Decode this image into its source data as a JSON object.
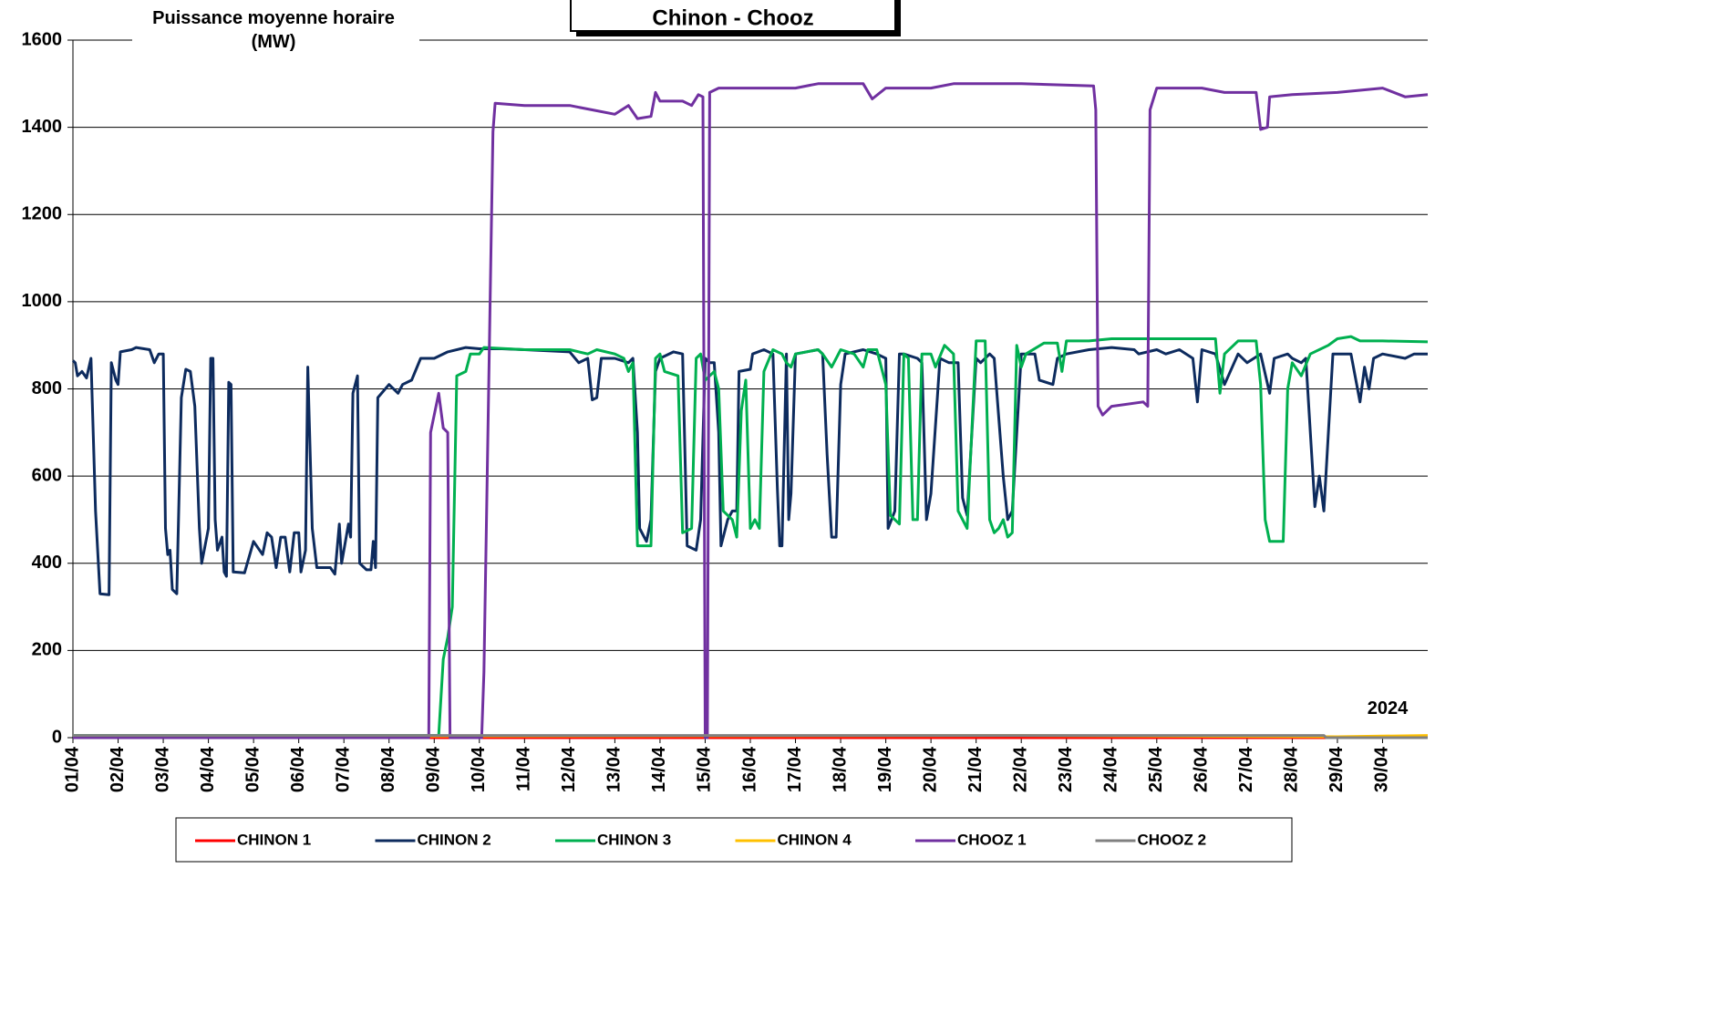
{
  "chart_data": {
    "type": "line",
    "title": "Chinon - Chooz",
    "y_label_lines": [
      "Puissance moyenne horaire",
      "(MW)"
    ],
    "annotation": "2024",
    "xlim": [
      1,
      31
    ],
    "ylim": [
      0,
      1600
    ],
    "yticks": [
      0,
      200,
      400,
      600,
      800,
      1000,
      1200,
      1400,
      1600
    ],
    "xticks": [
      {
        "value": 1,
        "label": "01/04"
      },
      {
        "value": 2,
        "label": "02/04"
      },
      {
        "value": 3,
        "label": "03/04"
      },
      {
        "value": 4,
        "label": "04/04"
      },
      {
        "value": 5,
        "label": "05/04"
      },
      {
        "value": 6,
        "label": "06/04"
      },
      {
        "value": 7,
        "label": "07/04"
      },
      {
        "value": 8,
        "label": "08/04"
      },
      {
        "value": 9,
        "label": "09/04"
      },
      {
        "value": 10,
        "label": "10/04"
      },
      {
        "value": 11,
        "label": "11/04"
      },
      {
        "value": 12,
        "label": "12/04"
      },
      {
        "value": 13,
        "label": "13/04"
      },
      {
        "value": 14,
        "label": "14/04"
      },
      {
        "value": 15,
        "label": "15/04"
      },
      {
        "value": 16,
        "label": "16/04"
      },
      {
        "value": 17,
        "label": "17/04"
      },
      {
        "value": 18,
        "label": "18/04"
      },
      {
        "value": 19,
        "label": "19/04"
      },
      {
        "value": 20,
        "label": "20/04"
      },
      {
        "value": 21,
        "label": "21/04"
      },
      {
        "value": 22,
        "label": "22/04"
      },
      {
        "value": 23,
        "label": "23/04"
      },
      {
        "value": 24,
        "label": "24/04"
      },
      {
        "value": 25,
        "label": "25/04"
      },
      {
        "value": 26,
        "label": "26/04"
      },
      {
        "value": 27,
        "label": "27/04"
      },
      {
        "value": 28,
        "label": "28/04"
      },
      {
        "value": 29,
        "label": "29/04"
      },
      {
        "value": 30,
        "label": "30/04"
      }
    ],
    "grid": true,
    "legend": "bottom",
    "series": [
      {
        "name": "CHINON 1",
        "color": "#ff0000",
        "x": [
          1,
          31
        ],
        "values": [
          0,
          0
        ]
      },
      {
        "name": "CHINON 2",
        "color": "#0d2b5e",
        "x": [
          1.0,
          1.05,
          1.1,
          1.2,
          1.3,
          1.4,
          1.5,
          1.6,
          1.8,
          1.85,
          1.95,
          2.0,
          2.05,
          2.3,
          2.4,
          2.7,
          2.8,
          2.9,
          3.0,
          3.05,
          3.1,
          3.15,
          3.2,
          3.3,
          3.4,
          3.5,
          3.6,
          3.7,
          3.8,
          3.85,
          4.0,
          4.05,
          4.1,
          4.15,
          4.2,
          4.3,
          4.35,
          4.4,
          4.45,
          4.5,
          4.55,
          4.8,
          5.0,
          5.2,
          5.3,
          5.4,
          5.5,
          5.6,
          5.7,
          5.8,
          5.9,
          6.0,
          6.05,
          6.15,
          6.2,
          6.3,
          6.4,
          6.7,
          6.8,
          6.9,
          6.95,
          7.1,
          7.15,
          7.2,
          7.3,
          7.35,
          7.5,
          7.6,
          7.65,
          7.7,
          7.75,
          8.0,
          8.2,
          8.3,
          8.5,
          8.7,
          9.0,
          9.3,
          9.7,
          10.0,
          10.5,
          11.0,
          12.0,
          12.2,
          12.4,
          12.5,
          12.6,
          12.7,
          13.0,
          13.3,
          13.4,
          13.5,
          13.55,
          13.7,
          13.8,
          13.9,
          14.0,
          14.3,
          14.5,
          14.6,
          14.8,
          14.9,
          15.0,
          15.1,
          15.2,
          15.3,
          15.35,
          15.5,
          15.6,
          15.7,
          15.75,
          16.0,
          16.05,
          16.3,
          16.5,
          16.6,
          16.65,
          16.7,
          16.8,
          16.85,
          16.9,
          17.0,
          17.5,
          17.6,
          17.7,
          17.8,
          17.9,
          18.0,
          18.1,
          18.5,
          18.8,
          19.0,
          19.05,
          19.2,
          19.3,
          19.4,
          19.7,
          19.8,
          19.9,
          20.0,
          20.2,
          20.4,
          20.6,
          20.7,
          20.8,
          21.0,
          21.1,
          21.3,
          21.4,
          21.6,
          21.7,
          21.8,
          22.0,
          22.3,
          22.4,
          22.7,
          22.8,
          23.0,
          23.5,
          24.0,
          24.5,
          24.6,
          25.0,
          25.2,
          25.5,
          25.8,
          25.9,
          26.0,
          26.3,
          26.5,
          26.8,
          27.0,
          27.3,
          27.5,
          27.6,
          27.9,
          28.0,
          28.2,
          28.3,
          28.5,
          28.6,
          28.7,
          28.9,
          29.3,
          29.5,
          29.6,
          29.7,
          29.8,
          30.0,
          30.5,
          30.7,
          31.0
        ],
        "values": [
          865,
          860,
          830,
          840,
          825,
          870,
          520,
          330,
          328,
          860,
          820,
          810,
          885,
          890,
          895,
          890,
          860,
          880,
          880,
          480,
          420,
          430,
          340,
          330,
          780,
          845,
          840,
          760,
          480,
          400,
          480,
          870,
          870,
          500,
          430,
          460,
          380,
          370,
          815,
          810,
          380,
          378,
          450,
          420,
          470,
          460,
          390,
          460,
          460,
          380,
          470,
          470,
          380,
          430,
          850,
          480,
          390,
          390,
          375,
          490,
          400,
          490,
          460,
          790,
          830,
          400,
          385,
          385,
          450,
          390,
          780,
          810,
          790,
          810,
          820,
          870,
          870,
          885,
          895,
          892,
          892,
          890,
          885,
          860,
          870,
          775,
          780,
          870,
          870,
          860,
          870,
          700,
          480,
          450,
          500,
          840,
          870,
          885,
          880,
          440,
          430,
          500,
          870,
          860,
          860,
          700,
          440,
          500,
          520,
          520,
          840,
          845,
          880,
          890,
          880,
          570,
          440,
          440,
          880,
          500,
          560,
          880,
          890,
          880,
          650,
          460,
          460,
          810,
          880,
          890,
          880,
          870,
          480,
          520,
          880,
          880,
          870,
          860,
          500,
          560,
          870,
          860,
          860,
          550,
          510,
          870,
          860,
          880,
          870,
          600,
          500,
          520,
          880,
          880,
          820,
          810,
          870,
          880,
          890,
          895,
          890,
          880,
          890,
          880,
          890,
          870,
          770,
          890,
          880,
          810,
          880,
          860,
          880,
          790,
          870,
          880,
          870,
          860,
          870,
          530,
          600,
          520,
          880,
          880,
          770,
          850,
          800,
          870,
          880,
          870,
          880,
          880
        ]
      },
      {
        "name": "CHINON 3",
        "color": "#00b050",
        "x": [
          1.0,
          9.1,
          9.2,
          9.3,
          9.4,
          9.5,
          9.7,
          9.8,
          10.0,
          10.1,
          11.0,
          12.0,
          12.4,
          12.6,
          13.0,
          13.2,
          13.3,
          13.4,
          13.5,
          13.8,
          13.9,
          14.0,
          14.1,
          14.4,
          14.5,
          14.7,
          14.8,
          14.9,
          15.0,
          15.2,
          15.3,
          15.4,
          15.6,
          15.7,
          15.8,
          15.9,
          16.0,
          16.1,
          16.2,
          16.3,
          16.5,
          16.7,
          16.8,
          16.9,
          17.0,
          17.5,
          17.6,
          17.8,
          18.0,
          18.3,
          18.5,
          18.6,
          18.8,
          19.0,
          19.1,
          19.3,
          19.4,
          19.5,
          19.6,
          19.7,
          19.8,
          20.0,
          20.1,
          20.3,
          20.5,
          20.6,
          20.8,
          21.0,
          21.2,
          21.3,
          21.4,
          21.5,
          21.6,
          21.7,
          21.8,
          21.9,
          22.0,
          22.1,
          22.5,
          22.8,
          22.9,
          23.0,
          23.5,
          24.0,
          25.0,
          26.0,
          26.3,
          26.4,
          26.5,
          26.8,
          27.2,
          27.3,
          27.4,
          27.5,
          27.8,
          27.9,
          28.0,
          28.2,
          28.4,
          28.8,
          29.0,
          29.3,
          29.5,
          30.0,
          31.0
        ],
        "values": [
          5,
          5,
          180,
          230,
          300,
          830,
          840,
          880,
          880,
          895,
          890,
          890,
          880,
          890,
          880,
          870,
          840,
          860,
          440,
          440,
          870,
          880,
          840,
          830,
          470,
          480,
          870,
          880,
          820,
          840,
          800,
          520,
          500,
          460,
          750,
          820,
          480,
          500,
          480,
          840,
          890,
          880,
          860,
          850,
          880,
          890,
          880,
          850,
          890,
          880,
          850,
          890,
          890,
          810,
          510,
          490,
          880,
          870,
          500,
          500,
          880,
          880,
          850,
          900,
          880,
          520,
          480,
          910,
          910,
          500,
          470,
          480,
          500,
          460,
          470,
          900,
          850,
          880,
          905,
          905,
          840,
          910,
          910,
          915,
          915,
          915,
          915,
          790,
          880,
          910,
          910,
          810,
          500,
          450,
          450,
          800,
          860,
          830,
          880,
          900,
          915,
          920,
          910,
          910,
          908
        ]
      },
      {
        "name": "CHINON 4",
        "color": "#ffc000",
        "x": [
          1,
          22,
          29,
          31
        ],
        "values": [
          3,
          5,
          2,
          5
        ]
      },
      {
        "name": "CHOOZ 1",
        "color": "#7030a0",
        "x": [
          1.0,
          8.88,
          8.92,
          9.1,
          9.2,
          9.3,
          9.35,
          9.44,
          10.05,
          10.1,
          10.3,
          10.35,
          11.0,
          12.0,
          12.5,
          13.0,
          13.3,
          13.5,
          13.8,
          13.9,
          14.0,
          14.5,
          14.7,
          14.85,
          14.95,
          15.0,
          15.05,
          15.1,
          15.3,
          16.0,
          17.0,
          17.5,
          18.5,
          18.7,
          19.0,
          20.0,
          20.5,
          22.0,
          23.6,
          23.65,
          23.7,
          23.8,
          24.0,
          24.7,
          24.8,
          24.85,
          25.0,
          26.0,
          26.5,
          27.2,
          27.3,
          27.45,
          27.5,
          28.0,
          29.0,
          30.0,
          30.5,
          31.0
        ],
        "values": [
          0,
          0,
          700,
          790,
          710,
          700,
          0,
          0,
          0,
          150,
          1390,
          1455,
          1450,
          1450,
          1440,
          1430,
          1450,
          1420,
          1425,
          1480,
          1460,
          1460,
          1450,
          1475,
          1470,
          0,
          0,
          1480,
          1490,
          1490,
          1490,
          1500,
          1500,
          1465,
          1490,
          1490,
          1500,
          1500,
          1495,
          1440,
          760,
          740,
          760,
          770,
          760,
          1440,
          1490,
          1490,
          1480,
          1480,
          1395,
          1400,
          1470,
          1475,
          1480,
          1490,
          1470,
          1475
        ]
      },
      {
        "name": "CHOOZ 2",
        "color": "#808080",
        "x": [
          1,
          28.7,
          28.75,
          31
        ],
        "values": [
          5,
          5,
          0,
          0
        ]
      }
    ]
  }
}
